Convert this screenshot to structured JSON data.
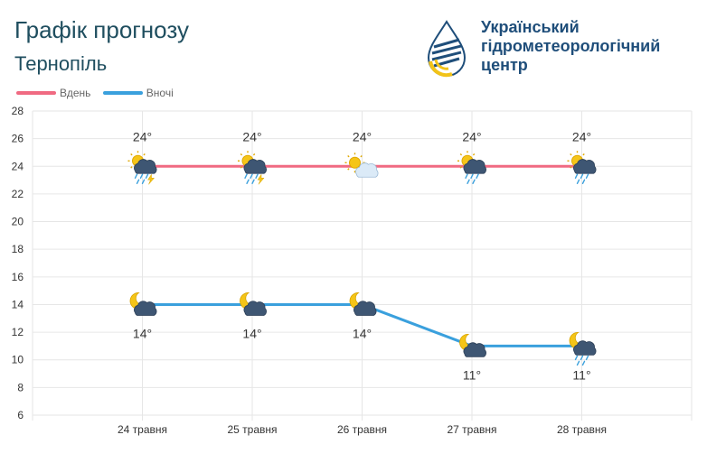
{
  "header": {
    "title": "Графік прогнозу",
    "city": "Тернопіль"
  },
  "brand": {
    "line1": "Український",
    "line2": "гідрометеорологічний",
    "line3": "центр",
    "logo_icon": "drop-logo-icon"
  },
  "colors": {
    "day": "#f06a82",
    "night": "#3aa0dd",
    "grid": "#e6e6e6",
    "text": "#333333"
  },
  "chart_data": {
    "type": "line",
    "categories": [
      "24 травня",
      "25 травня",
      "26 травня",
      "27 травня",
      "28 травня"
    ],
    "series": [
      {
        "name": "Вдень",
        "values": [
          24,
          24,
          24,
          24,
          24
        ],
        "labels": [
          "24°",
          "24°",
          "24°",
          "24°",
          "24°"
        ],
        "icons": [
          "sun-cloud-rain-thunder-icon",
          "sun-cloud-rain-thunder-icon",
          "sun-cloud-icon",
          "sun-cloud-rain-icon",
          "sun-cloud-rain-icon"
        ]
      },
      {
        "name": "Вночі",
        "values": [
          14,
          14,
          14,
          11,
          11
        ],
        "labels": [
          "14°",
          "14°",
          "14°",
          "11°",
          "11°"
        ],
        "icons": [
          "moon-cloud-icon",
          "moon-cloud-icon",
          "moon-cloud-icon",
          "moon-cloud-icon",
          "moon-cloud-rain-icon"
        ]
      }
    ],
    "ylim": [
      6,
      28
    ],
    "yticks": [
      6,
      8,
      10,
      12,
      14,
      16,
      18,
      20,
      22,
      24,
      26,
      28
    ],
    "grid": true,
    "legend": "top-left"
  }
}
